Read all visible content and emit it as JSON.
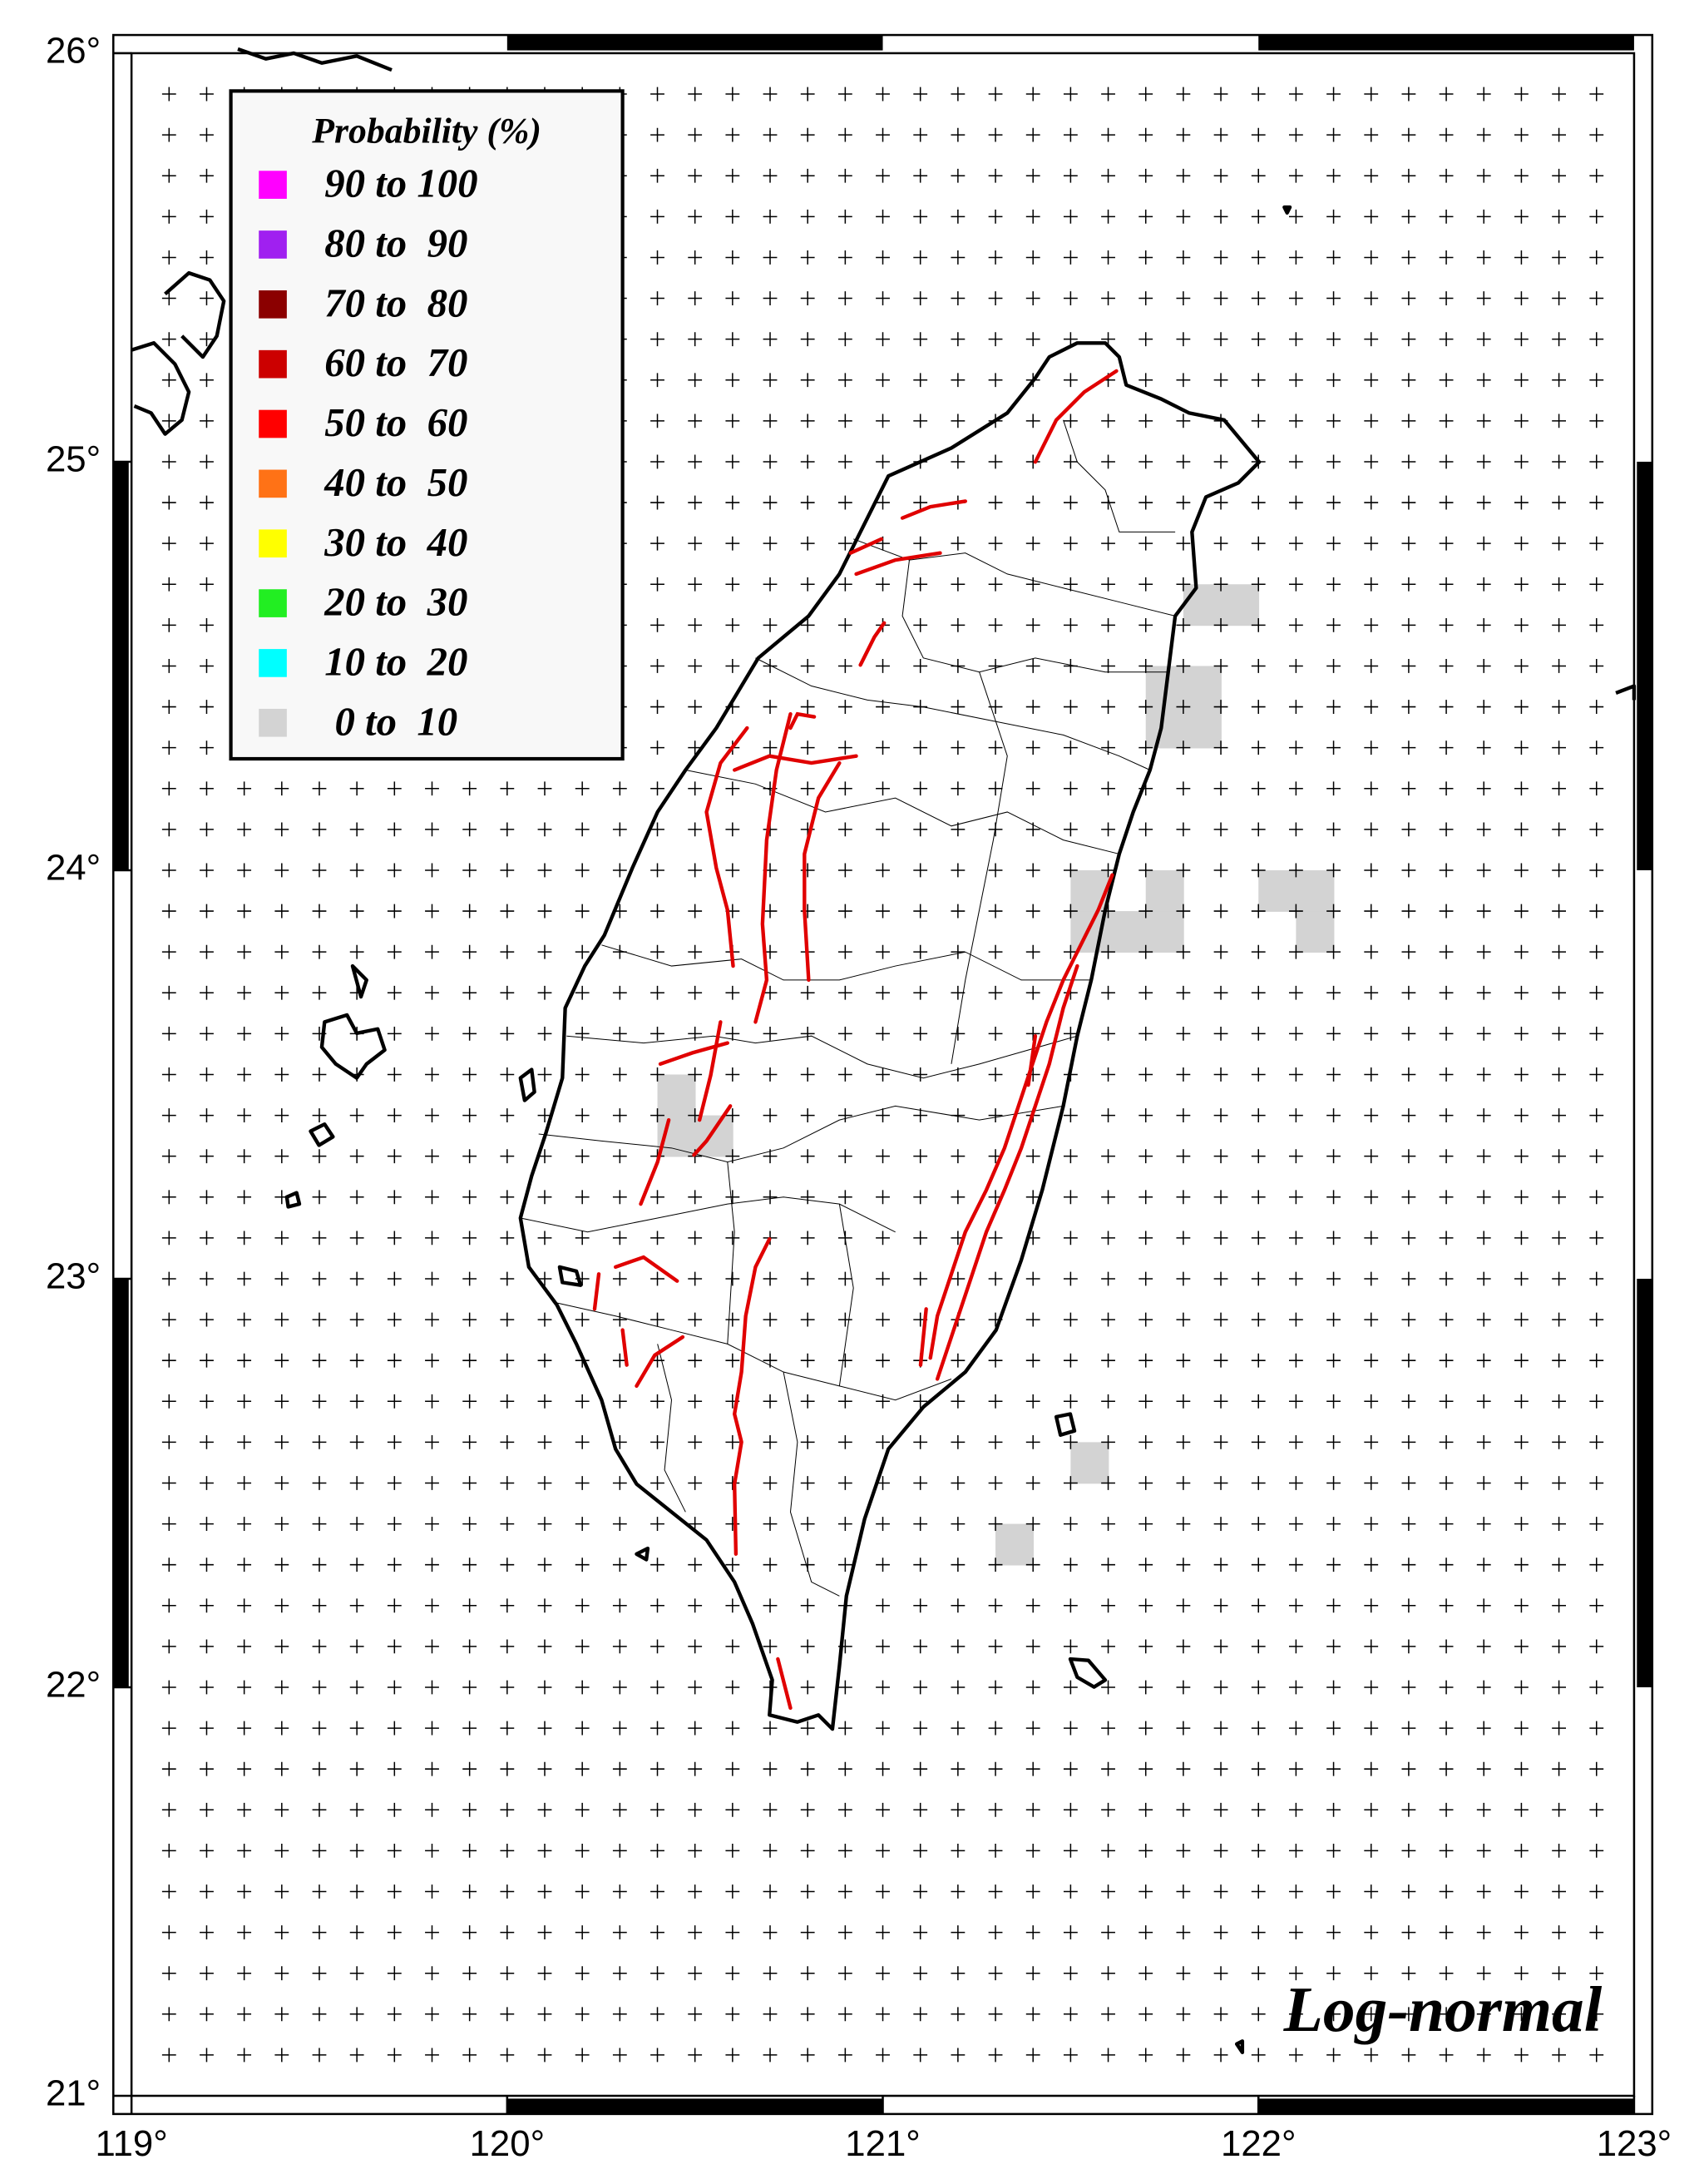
{
  "map": {
    "xlim": [
      119,
      123
    ],
    "ylim": [
      21,
      26
    ],
    "xticks": [
      {
        "value": 119,
        "label": "119°"
      },
      {
        "value": 120,
        "label": "120°"
      },
      {
        "value": 121,
        "label": "121°"
      },
      {
        "value": 122,
        "label": "122°"
      },
      {
        "value": 123,
        "label": "123°"
      }
    ],
    "yticks": [
      {
        "value": 21,
        "label": "21°"
      },
      {
        "value": 22,
        "label": "22°"
      },
      {
        "value": 23,
        "label": "23°"
      },
      {
        "value": 24,
        "label": "24°"
      },
      {
        "value": 25,
        "label": "25°"
      },
      {
        "value": 26,
        "label": "26°"
      }
    ],
    "annotation": "Log-normal",
    "legend": {
      "title": "Probability (%)",
      "items": [
        {
          "label": "90 to 100",
          "color": "#ff00ff"
        },
        {
          "label": "80 to  90",
          "color": "#a020f0"
        },
        {
          "label": "70 to  80",
          "color": "#8b0000"
        },
        {
          "label": "60 to  70",
          "color": "#cc0000"
        },
        {
          "label": "50 to  60",
          "color": "#ff0000"
        },
        {
          "label": "40 to  50",
          "color": "#ff7216"
        },
        {
          "label": "30 to  40",
          "color": "#ffff00"
        },
        {
          "label": "20 to  30",
          "color": "#22ee22"
        },
        {
          "label": "10 to  20",
          "color": "#00ffff"
        },
        {
          "label": " 0 to  10",
          "color": "#d3d3d3",
          "cells": [
            {
              "lon": [
                121.8,
                121.9
              ],
              "lat": [
                24.6,
                24.7
              ]
            },
            {
              "lon": [
                121.9,
                122.0
              ],
              "lat": [
                24.6,
                24.7
              ]
            },
            {
              "lon": [
                121.7,
                121.8
              ],
              "lat": [
                24.4,
                24.5
              ]
            },
            {
              "lon": [
                121.8,
                121.9
              ],
              "lat": [
                24.4,
                24.5
              ]
            },
            {
              "lon": [
                121.7,
                121.8
              ],
              "lat": [
                24.3,
                24.4
              ]
            },
            {
              "lon": [
                121.8,
                121.9
              ],
              "lat": [
                24.3,
                24.4
              ]
            },
            {
              "lon": [
                121.5,
                121.6
              ],
              "lat": [
                23.9,
                24.0
              ]
            },
            {
              "lon": [
                121.5,
                121.6
              ],
              "lat": [
                23.8,
                23.9
              ]
            },
            {
              "lon": [
                121.6,
                121.7
              ],
              "lat": [
                23.8,
                23.9
              ]
            },
            {
              "lon": [
                121.7,
                121.8
              ],
              "lat": [
                23.9,
                24.0
              ]
            },
            {
              "lon": [
                121.7,
                121.8
              ],
              "lat": [
                23.8,
                23.9
              ]
            },
            {
              "lon": [
                122.0,
                122.1
              ],
              "lat": [
                23.9,
                24.0
              ]
            },
            {
              "lon": [
                122.1,
                122.2
              ],
              "lat": [
                23.9,
                24.0
              ]
            },
            {
              "lon": [
                122.1,
                122.2
              ],
              "lat": [
                23.8,
                23.9
              ]
            },
            {
              "lon": [
                120.4,
                120.5
              ],
              "lat": [
                23.4,
                23.5
              ]
            },
            {
              "lon": [
                120.4,
                120.5
              ],
              "lat": [
                23.3,
                23.4
              ]
            },
            {
              "lon": [
                120.5,
                120.6
              ],
              "lat": [
                23.3,
                23.4
              ]
            },
            {
              "lon": [
                121.5,
                121.6
              ],
              "lat": [
                22.5,
                22.6
              ]
            },
            {
              "lon": [
                121.3,
                121.4
              ],
              "lat": [
                22.3,
                22.4
              ]
            }
          ]
        }
      ]
    }
  }
}
